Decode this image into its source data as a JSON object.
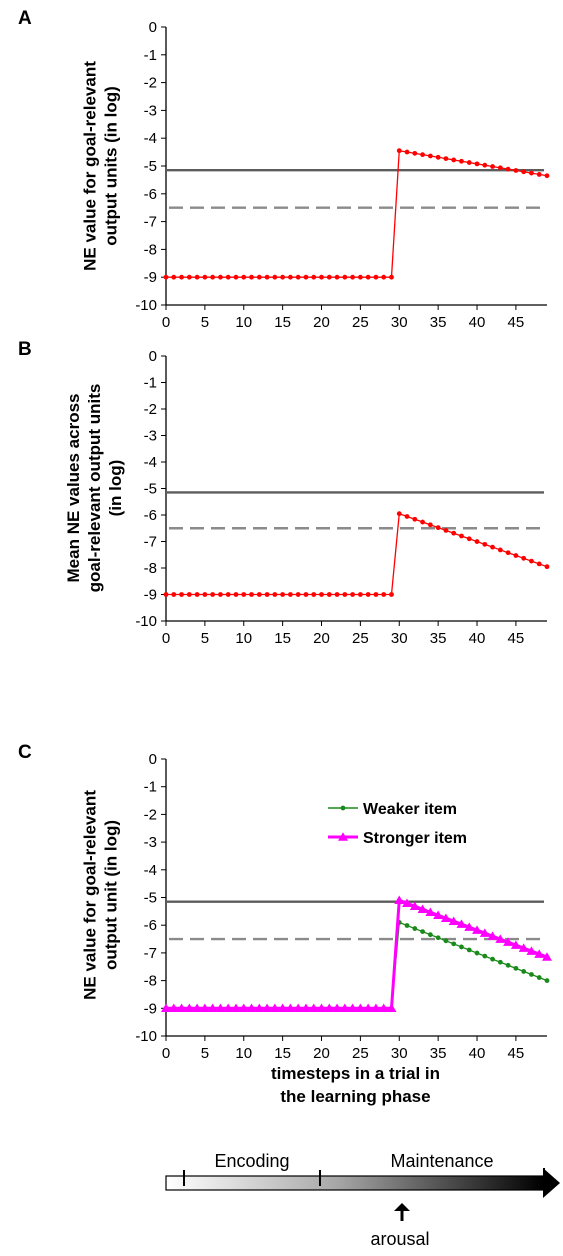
{
  "chart_data": [
    {
      "panel": "A",
      "type": "line",
      "ylabel_lines": [
        "NE value for goal-relevant",
        "output units (in log)"
      ],
      "x_ticks": [
        0,
        5,
        10,
        15,
        20,
        25,
        30,
        35,
        40,
        45
      ],
      "y_ticks": [
        0,
        -1,
        -2,
        -3,
        -4,
        -5,
        -6,
        -7,
        -8,
        -9,
        -10
      ],
      "xlim": [
        0,
        49
      ],
      "ylim": [
        -10,
        0
      ],
      "grid": false,
      "solid_threshold": -5.15,
      "dashed_threshold": -6.5,
      "series": [
        {
          "color": "#ff0000",
          "marker": "dot",
          "segments": [
            {
              "x_start": 0,
              "x_end": 29,
              "y_start": -9.0,
              "y_end": -9.0
            },
            {
              "x_start": 30,
              "x_end": 49,
              "y_start": -4.45,
              "y_end": -5.35
            }
          ]
        }
      ]
    },
    {
      "panel": "B",
      "type": "line",
      "ylabel_lines": [
        "Mean NE values across",
        "goal-relevant output units",
        "(in log)"
      ],
      "x_ticks": [
        0,
        5,
        10,
        15,
        20,
        25,
        30,
        35,
        40,
        45
      ],
      "y_ticks": [
        0,
        -1,
        -2,
        -3,
        -4,
        -5,
        -6,
        -7,
        -8,
        -9,
        -10
      ],
      "xlim": [
        0,
        49
      ],
      "ylim": [
        -10,
        0
      ],
      "grid": false,
      "solid_threshold": -5.15,
      "dashed_threshold": -6.5,
      "series": [
        {
          "color": "#ff0000",
          "marker": "dot",
          "segments": [
            {
              "x_start": 0,
              "x_end": 29,
              "y_start": -9.0,
              "y_end": -9.0
            },
            {
              "x_start": 30,
              "x_end": 49,
              "y_start": -5.95,
              "y_end": -7.95
            }
          ]
        }
      ]
    },
    {
      "panel": "C",
      "type": "line",
      "ylabel_lines": [
        "NE value for goal-relevant",
        "output unit (in log)"
      ],
      "xlabel_lines": [
        "timesteps in a trial in",
        "the learning phase"
      ],
      "x_ticks": [
        0,
        5,
        10,
        15,
        20,
        25,
        30,
        35,
        40,
        45
      ],
      "y_ticks": [
        0,
        -1,
        -2,
        -3,
        -4,
        -5,
        -6,
        -7,
        -8,
        -9,
        -10
      ],
      "xlim": [
        0,
        49
      ],
      "ylim": [
        -10,
        0
      ],
      "grid": false,
      "legend_position": "top-right",
      "solid_threshold": -5.15,
      "dashed_threshold": -6.5,
      "series": [
        {
          "name": "Weaker item",
          "color": "#1a8a1a",
          "marker": "dot",
          "segments": [
            {
              "x_start": 0,
              "x_end": 29,
              "y_start": -9.0,
              "y_end": -9.0
            },
            {
              "x_start": 30,
              "x_end": 49,
              "y_start": -5.9,
              "y_end": -8.0
            }
          ]
        },
        {
          "name": "Stronger item",
          "color": "#ff00ff",
          "marker": "triangle",
          "segments": [
            {
              "x_start": 0,
              "x_end": 29,
              "y_start": -9.0,
              "y_end": -9.0
            },
            {
              "x_start": 30,
              "x_end": 49,
              "y_start": -5.1,
              "y_end": -7.15
            }
          ]
        }
      ]
    }
  ],
  "timeline": {
    "phases": [
      "Encoding",
      "Maintenance"
    ],
    "event_label": "arousal"
  }
}
